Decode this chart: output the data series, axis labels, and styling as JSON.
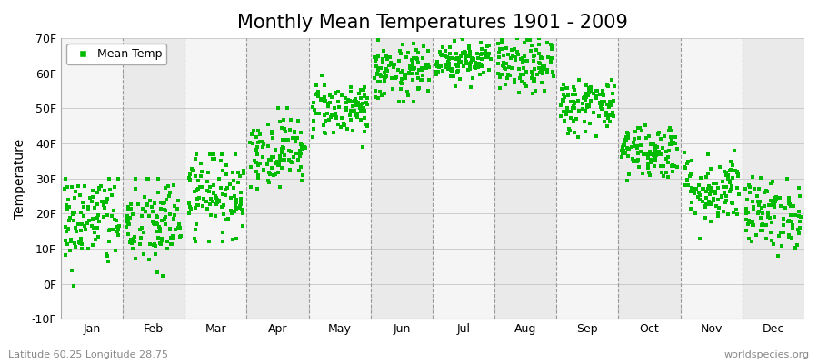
{
  "title": "Monthly Mean Temperatures 1901 - 2009",
  "ylabel": "Temperature",
  "xlabel": "",
  "ylim": [
    -10,
    70
  ],
  "yticks": [
    -10,
    0,
    10,
    20,
    30,
    40,
    50,
    60,
    70
  ],
  "ytick_labels": [
    "-10F",
    "0F",
    "10F",
    "20F",
    "30F",
    "40F",
    "50F",
    "60F",
    "70F"
  ],
  "months": [
    "Jan",
    "Feb",
    "Mar",
    "Apr",
    "May",
    "Jun",
    "Jul",
    "Aug",
    "Sep",
    "Oct",
    "Nov",
    "Dec"
  ],
  "month_means_F": [
    18,
    17,
    26,
    38,
    50,
    60,
    64,
    62,
    51,
    38,
    27,
    20
  ],
  "month_stds_F": [
    7,
    7,
    6,
    5,
    4,
    4,
    3,
    4,
    4,
    4,
    5,
    5
  ],
  "month_mins_F": [
    -8,
    -5,
    12,
    27,
    39,
    52,
    56,
    53,
    41,
    27,
    12,
    8
  ],
  "month_maxs_F": [
    30,
    30,
    37,
    50,
    62,
    70,
    71,
    70,
    60,
    49,
    45,
    35
  ],
  "n_years": 109,
  "marker_color": "#00bb00",
  "marker_size": 8,
  "legend_label": "Mean Temp",
  "bg_color_light": "#f5f5f5",
  "bg_color_dark": "#eaeaea",
  "grid_color": "#999999",
  "hgrid_color": "#cccccc",
  "title_fontsize": 15,
  "axis_label_fontsize": 10,
  "tick_fontsize": 9,
  "footnote_left": "Latitude 60.25 Longitude 28.75",
  "footnote_right": "worldspecies.org",
  "footnote_fontsize": 8,
  "seed": 42
}
